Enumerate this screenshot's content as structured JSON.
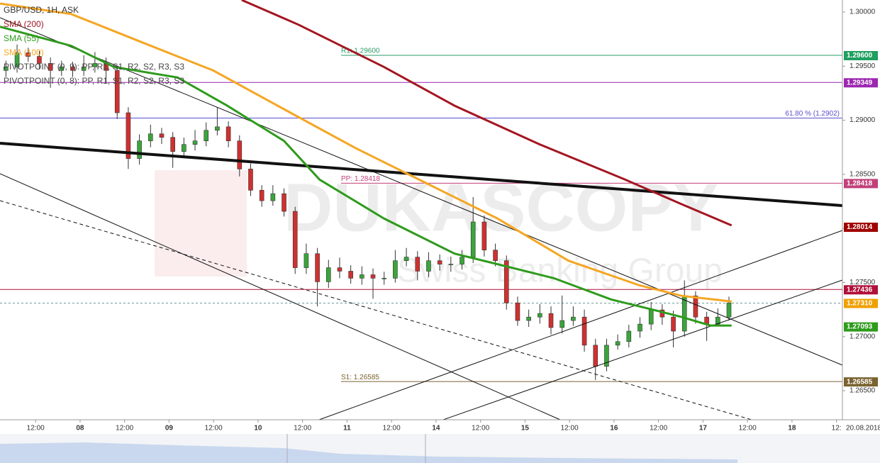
{
  "chart_data": {
    "type": "candlestick",
    "title": "GBP/USD, 1H, ASK",
    "indicator_legend": [
      "SMA (200)",
      "SMA (55)",
      "SMA (100)",
      "PIVOTPOINT (0, 9): PP, R1, S1, R2, S2, R3, S3",
      "PIVOTPOINT (0, 8): PP, R1, S1, R2, S2, R3, S3"
    ],
    "watermark": "DUKASCOPY",
    "watermark_sub": "Swiss Banking Group",
    "date_label": "20.08.2018",
    "up_color": "#3aa53a",
    "down_color": "#d03030",
    "x": [
      -8,
      -5,
      -2,
      1,
      4,
      7,
      10,
      13,
      16,
      19,
      22,
      25,
      28,
      31,
      34,
      37,
      40,
      43,
      46,
      49,
      52,
      55,
      58,
      61,
      64,
      67,
      70,
      73,
      76,
      79,
      82,
      85,
      88,
      91,
      94,
      97,
      100,
      103,
      106,
      109,
      112,
      115,
      118,
      121,
      124,
      127,
      130,
      133,
      136,
      139,
      142,
      145,
      148,
      151,
      154,
      157,
      160,
      163,
      166,
      169,
      172,
      175,
      178,
      181,
      184,
      187
    ],
    "open": [
      1.2946,
      1.29493,
      1.29623,
      1.2959,
      1.29525,
      1.2946,
      1.29493,
      1.2946,
      1.29493,
      1.29525,
      1.2946,
      1.29069,
      1.28646,
      1.28809,
      1.28874,
      1.28842,
      1.28711,
      1.28776,
      1.28809,
      1.28907,
      1.28939,
      1.28809,
      1.28549,
      1.28353,
      1.28256,
      1.28321,
      1.28158,
      1.27637,
      1.27767,
      1.27507,
      1.27637,
      1.27605,
      1.2754,
      1.27572,
      1.2754,
      1.2754,
      1.27702,
      1.27735,
      1.27605,
      1.27702,
      1.2767,
      1.2767,
      1.27735,
      1.2806,
      1.278,
      1.27702,
      1.27312,
      1.27149,
      1.27181,
      1.27214,
      1.27084,
      1.27149,
      1.27181,
      1.26921,
      1.26726,
      1.26921,
      1.26954,
      1.27051,
      1.27116,
      1.27247,
      1.27181,
      1.27051,
      1.27377,
      1.27181,
      1.27116,
      1.27181
    ],
    "high": [
      1.2955,
      1.297,
      1.2967,
      1.2964,
      1.2958,
      1.2955,
      1.2954,
      1.296,
      1.2963,
      1.2958,
      1.295,
      1.2912,
      1.2887,
      1.2896,
      1.2893,
      1.2889,
      1.2884,
      1.2891,
      1.2898,
      1.2912,
      1.2899,
      1.2886,
      1.286,
      1.284,
      1.284,
      1.2837,
      1.282,
      1.2786,
      1.2782,
      1.2771,
      1.2773,
      1.2766,
      1.2765,
      1.2763,
      1.276,
      1.278,
      1.2782,
      1.2779,
      1.2778,
      1.2776,
      1.2774,
      1.278,
      1.2829,
      1.2812,
      1.2786,
      1.2775,
      1.2737,
      1.2725,
      1.273,
      1.2728,
      1.2738,
      1.2728,
      1.2725,
      1.2698,
      1.2698,
      1.2702,
      1.2711,
      1.2718,
      1.2732,
      1.273,
      1.2724,
      1.2752,
      1.2742,
      1.2723,
      1.2726,
      1.2737
    ],
    "low": [
      1.294,
      1.2944,
      1.2954,
      1.2947,
      1.293,
      1.2941,
      1.294,
      1.2941,
      1.2944,
      1.2935,
      1.2901,
      1.2855,
      1.2859,
      1.2875,
      1.2878,
      1.2856,
      1.2866,
      1.2872,
      1.2876,
      1.2886,
      1.2875,
      1.2848,
      1.283,
      1.282,
      1.2821,
      1.2811,
      1.2758,
      1.2758,
      1.2728,
      1.2745,
      1.2754,
      1.2749,
      1.2748,
      1.2735,
      1.2748,
      1.275,
      1.2765,
      1.2752,
      1.2755,
      1.2761,
      1.276,
      1.2762,
      1.2768,
      1.2774,
      1.2765,
      1.2725,
      1.271,
      1.2709,
      1.2712,
      1.2702,
      1.2703,
      1.271,
      1.2686,
      1.266,
      1.2668,
      1.2688,
      1.269,
      1.2699,
      1.2706,
      1.2711,
      1.269,
      1.27,
      1.2712,
      1.2696,
      1.271,
      1.2715
    ],
    "close": [
      1.29493,
      1.29623,
      1.2959,
      1.29525,
      1.2946,
      1.29493,
      1.2946,
      1.29493,
      1.29525,
      1.2946,
      1.29069,
      1.28646,
      1.28809,
      1.28874,
      1.28842,
      1.28711,
      1.28776,
      1.28809,
      1.28907,
      1.28939,
      1.28809,
      1.28549,
      1.28353,
      1.28256,
      1.28321,
      1.28158,
      1.27637,
      1.27767,
      1.27507,
      1.27637,
      1.27605,
      1.2754,
      1.27572,
      1.2754,
      1.2754,
      1.27702,
      1.27735,
      1.27605,
      1.27702,
      1.2767,
      1.2767,
      1.27735,
      1.2806,
      1.278,
      1.27702,
      1.27312,
      1.27149,
      1.27181,
      1.27214,
      1.27084,
      1.27149,
      1.27181,
      1.26921,
      1.26726,
      1.26921,
      1.26954,
      1.27051,
      1.27116,
      1.27247,
      1.27181,
      1.27051,
      1.27377,
      1.27181,
      1.27116,
      1.27181,
      1.27312
    ],
    "series": [
      {
        "name": "SMA (200)",
        "color": "#a31621",
        "x": [
          55.6,
          70.9,
          93.9,
          113.0,
          136.0,
          159.0,
          174.3,
          187.7
        ],
        "values": [
          1.30111,
          1.29883,
          1.29493,
          1.29134,
          1.28776,
          1.28451,
          1.28223,
          1.28028
        ]
      },
      {
        "name": "SMA (55)",
        "color": "#2e9b1c",
        "x": [
          -9.6,
          9.6,
          21.1,
          38.3,
          51.7,
          67.0,
          76.6,
          93.9,
          113.0,
          124.5,
          139.8,
          155.2,
          166.7,
          174.3,
          182.0,
          187.7
        ],
        "values": [
          1.29864,
          1.29688,
          1.29493,
          1.29395,
          1.29134,
          1.28809,
          1.28451,
          1.28093,
          1.27767,
          1.2767,
          1.2754,
          1.27344,
          1.27247,
          1.27181,
          1.27103,
          1.27103
        ]
      },
      {
        "name": "SMA (100)",
        "color": "#f5a623",
        "x": [
          -9.6,
          9.6,
          28.7,
          47.9,
          67.0,
          86.2,
          105.4,
          124.5,
          143.7,
          162.8,
          174.3,
          187.7
        ],
        "values": [
          1.30078,
          1.29981,
          1.2972,
          1.2946,
          1.29102,
          1.28744,
          1.28418,
          1.28093,
          1.27702,
          1.27475,
          1.27377,
          1.27325
        ]
      }
    ],
    "levels": [
      {
        "value": 1.296,
        "color": "#2a9d6a",
        "caption": "R1: 1.29600"
      },
      {
        "value": 1.29349,
        "color": "#9c27b0"
      },
      {
        "value": 1.2902,
        "color": "#5a4fcf",
        "caption": "61.80 % (1.2902)"
      },
      {
        "value": 1.28418,
        "color": "#c2407a",
        "caption": "PP: 1.28418"
      },
      {
        "value": 1.27436,
        "color": "#b0103a"
      },
      {
        "value": 1.2731,
        "color": "#6a9a9a",
        "dashed": true
      },
      {
        "value": 1.26585,
        "color": "#7a6330",
        "caption": "S1: 1.26585"
      }
    ],
    "price_tags": [
      {
        "value": 1.296,
        "label": "1.29600",
        "color": "#1f9f60"
      },
      {
        "value": 1.29349,
        "label": "1.29349",
        "color": "#9c27b0"
      },
      {
        "value": 1.28418,
        "label": "1.28418",
        "color": "#c2407a"
      },
      {
        "value": 1.28014,
        "label": "1.28014",
        "color": "#a00000"
      },
      {
        "value": 1.27436,
        "label": "1.27436",
        "color": "#b0103a"
      },
      {
        "value": 1.2731,
        "label": "1.27310",
        "color": "#f0a000"
      },
      {
        "value": 1.27093,
        "label": "1.27093",
        "color": "#2e9b1c"
      },
      {
        "value": 1.26585,
        "label": "1.26585",
        "color": "#7a6330"
      }
    ],
    "xlim": [
      -9.6,
      217.6
    ],
    "ylim": [
      1.26232,
      1.30111
    ],
    "xticks": [
      {
        "value": 0,
        "label": "12:00"
      },
      {
        "value": 12,
        "label": "08"
      },
      {
        "value": 24,
        "label": "12:00"
      },
      {
        "value": 36,
        "label": "09"
      },
      {
        "value": 48,
        "label": "12:00"
      },
      {
        "value": 60,
        "label": "10"
      },
      {
        "value": 72,
        "label": "12:00"
      },
      {
        "value": 84,
        "label": "11"
      },
      {
        "value": 96,
        "label": "12:00"
      },
      {
        "value": 108,
        "label": "14"
      },
      {
        "value": 120,
        "label": "12:00"
      },
      {
        "value": 132,
        "label": "15"
      },
      {
        "value": 144,
        "label": "12:00"
      },
      {
        "value": 156,
        "label": "16"
      },
      {
        "value": 168,
        "label": "12:00"
      },
      {
        "value": 180,
        "label": "17"
      },
      {
        "value": 192,
        "label": "12:00"
      },
      {
        "value": 204,
        "label": "18"
      },
      {
        "value": 216,
        "label": "12:"
      }
    ],
    "yticks": [
      {
        "value": 1.3,
        "label": "1.30000"
      },
      {
        "value": 1.295,
        "label": "1.29500"
      },
      {
        "value": 1.29,
        "label": "1.29000"
      },
      {
        "value": 1.285,
        "label": "1.28500"
      },
      {
        "value": 1.28,
        "label": "1.28000"
      },
      {
        "value": 1.275,
        "label": "1.27500"
      },
      {
        "value": 1.27,
        "label": "1.27000"
      },
      {
        "value": 1.265,
        "label": "1.26500"
      }
    ]
  }
}
